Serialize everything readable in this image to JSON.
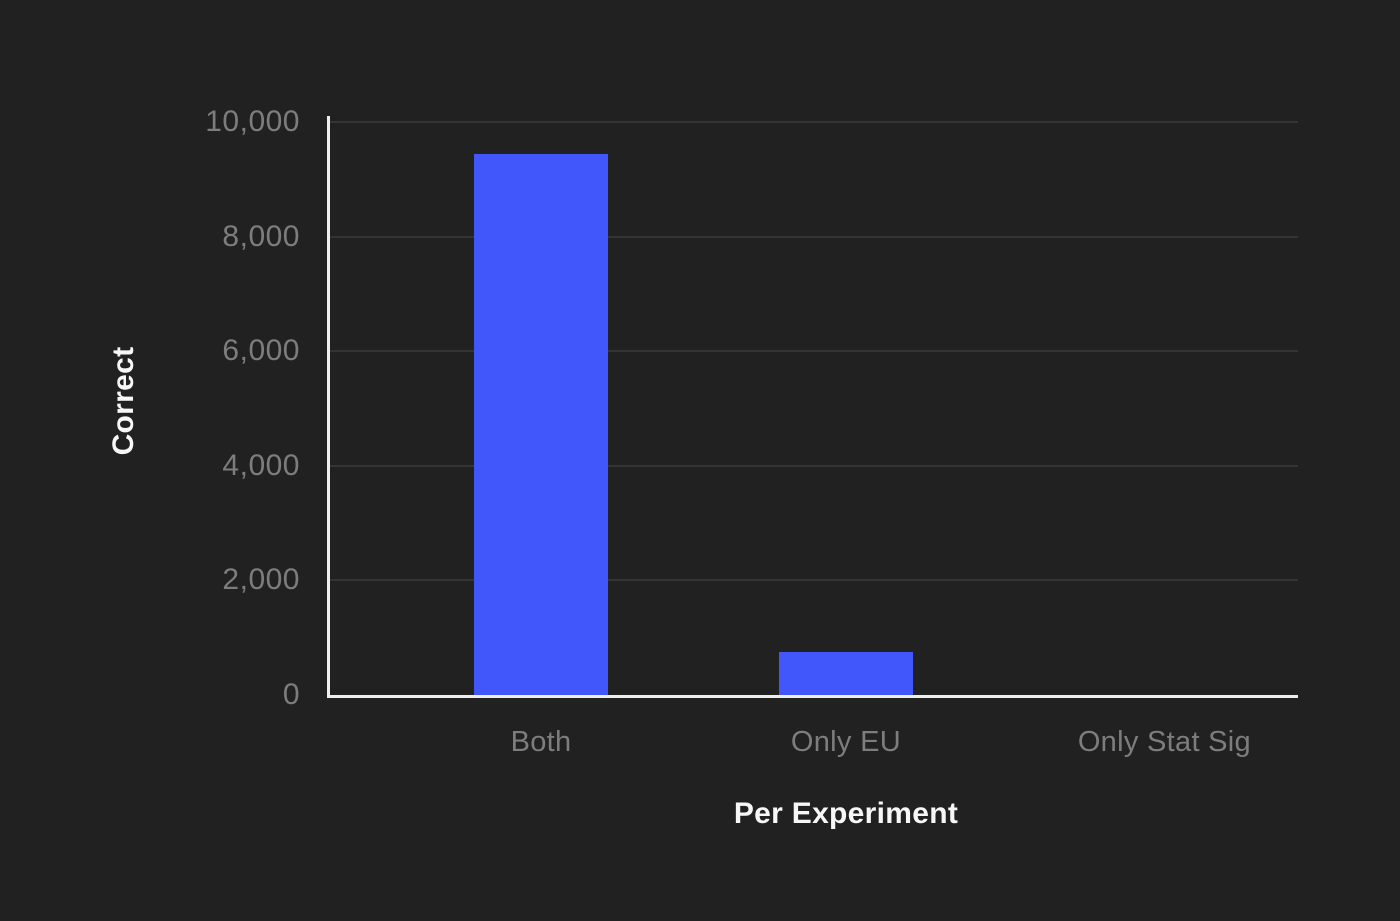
{
  "chart_data": {
    "type": "bar",
    "title": "",
    "categories": [
      "Both",
      "Only EU",
      "Only Stat Sig"
    ],
    "values": [
      9450,
      750,
      0
    ],
    "xlabel": "Per Experiment",
    "ylabel": "Correct",
    "ylim": [
      0,
      10000
    ],
    "yticks": [
      {
        "value": 0,
        "label": "0"
      },
      {
        "value": 2000,
        "label": "2,000"
      },
      {
        "value": 4000,
        "label": "4,000"
      },
      {
        "value": 6000,
        "label": "6,000"
      },
      {
        "value": 8000,
        "label": "8,000"
      },
      {
        "value": 10000,
        "label": "10,000"
      }
    ],
    "grid": true,
    "legend": false,
    "colors": {
      "background": "#212121",
      "bar": "#4156fb",
      "axis_line": "#eeeeee",
      "gridline": "#343434",
      "tick_label": "#7d7d7d",
      "axis_title": "#f7f7f7"
    }
  }
}
